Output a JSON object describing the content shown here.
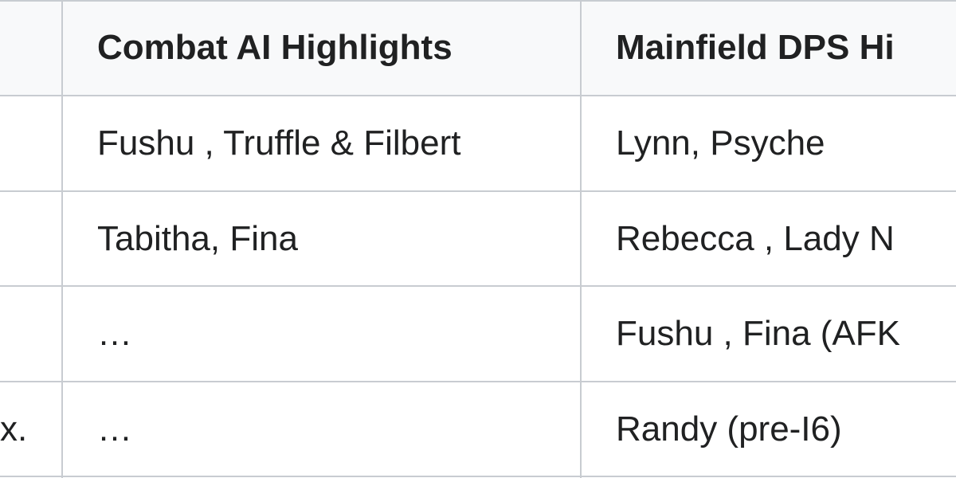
{
  "table": {
    "header": {
      "combat": "Combat AI Highlights",
      "mainfield": "Mainfield DPS Hi"
    },
    "rows": [
      {
        "combat": "Fushu , Truffle & Filbert",
        "mainfield": "Lynn, Psyche"
      },
      {
        "combat": "Tabitha, Fina",
        "mainfield": "Rebecca , Lady N"
      },
      {
        "combat": "…",
        "mainfield": "Fushu , Fina (AFK"
      },
      {
        "first": "x.",
        "combat": "…",
        "mainfield": "Randy (pre-I6)"
      }
    ]
  }
}
